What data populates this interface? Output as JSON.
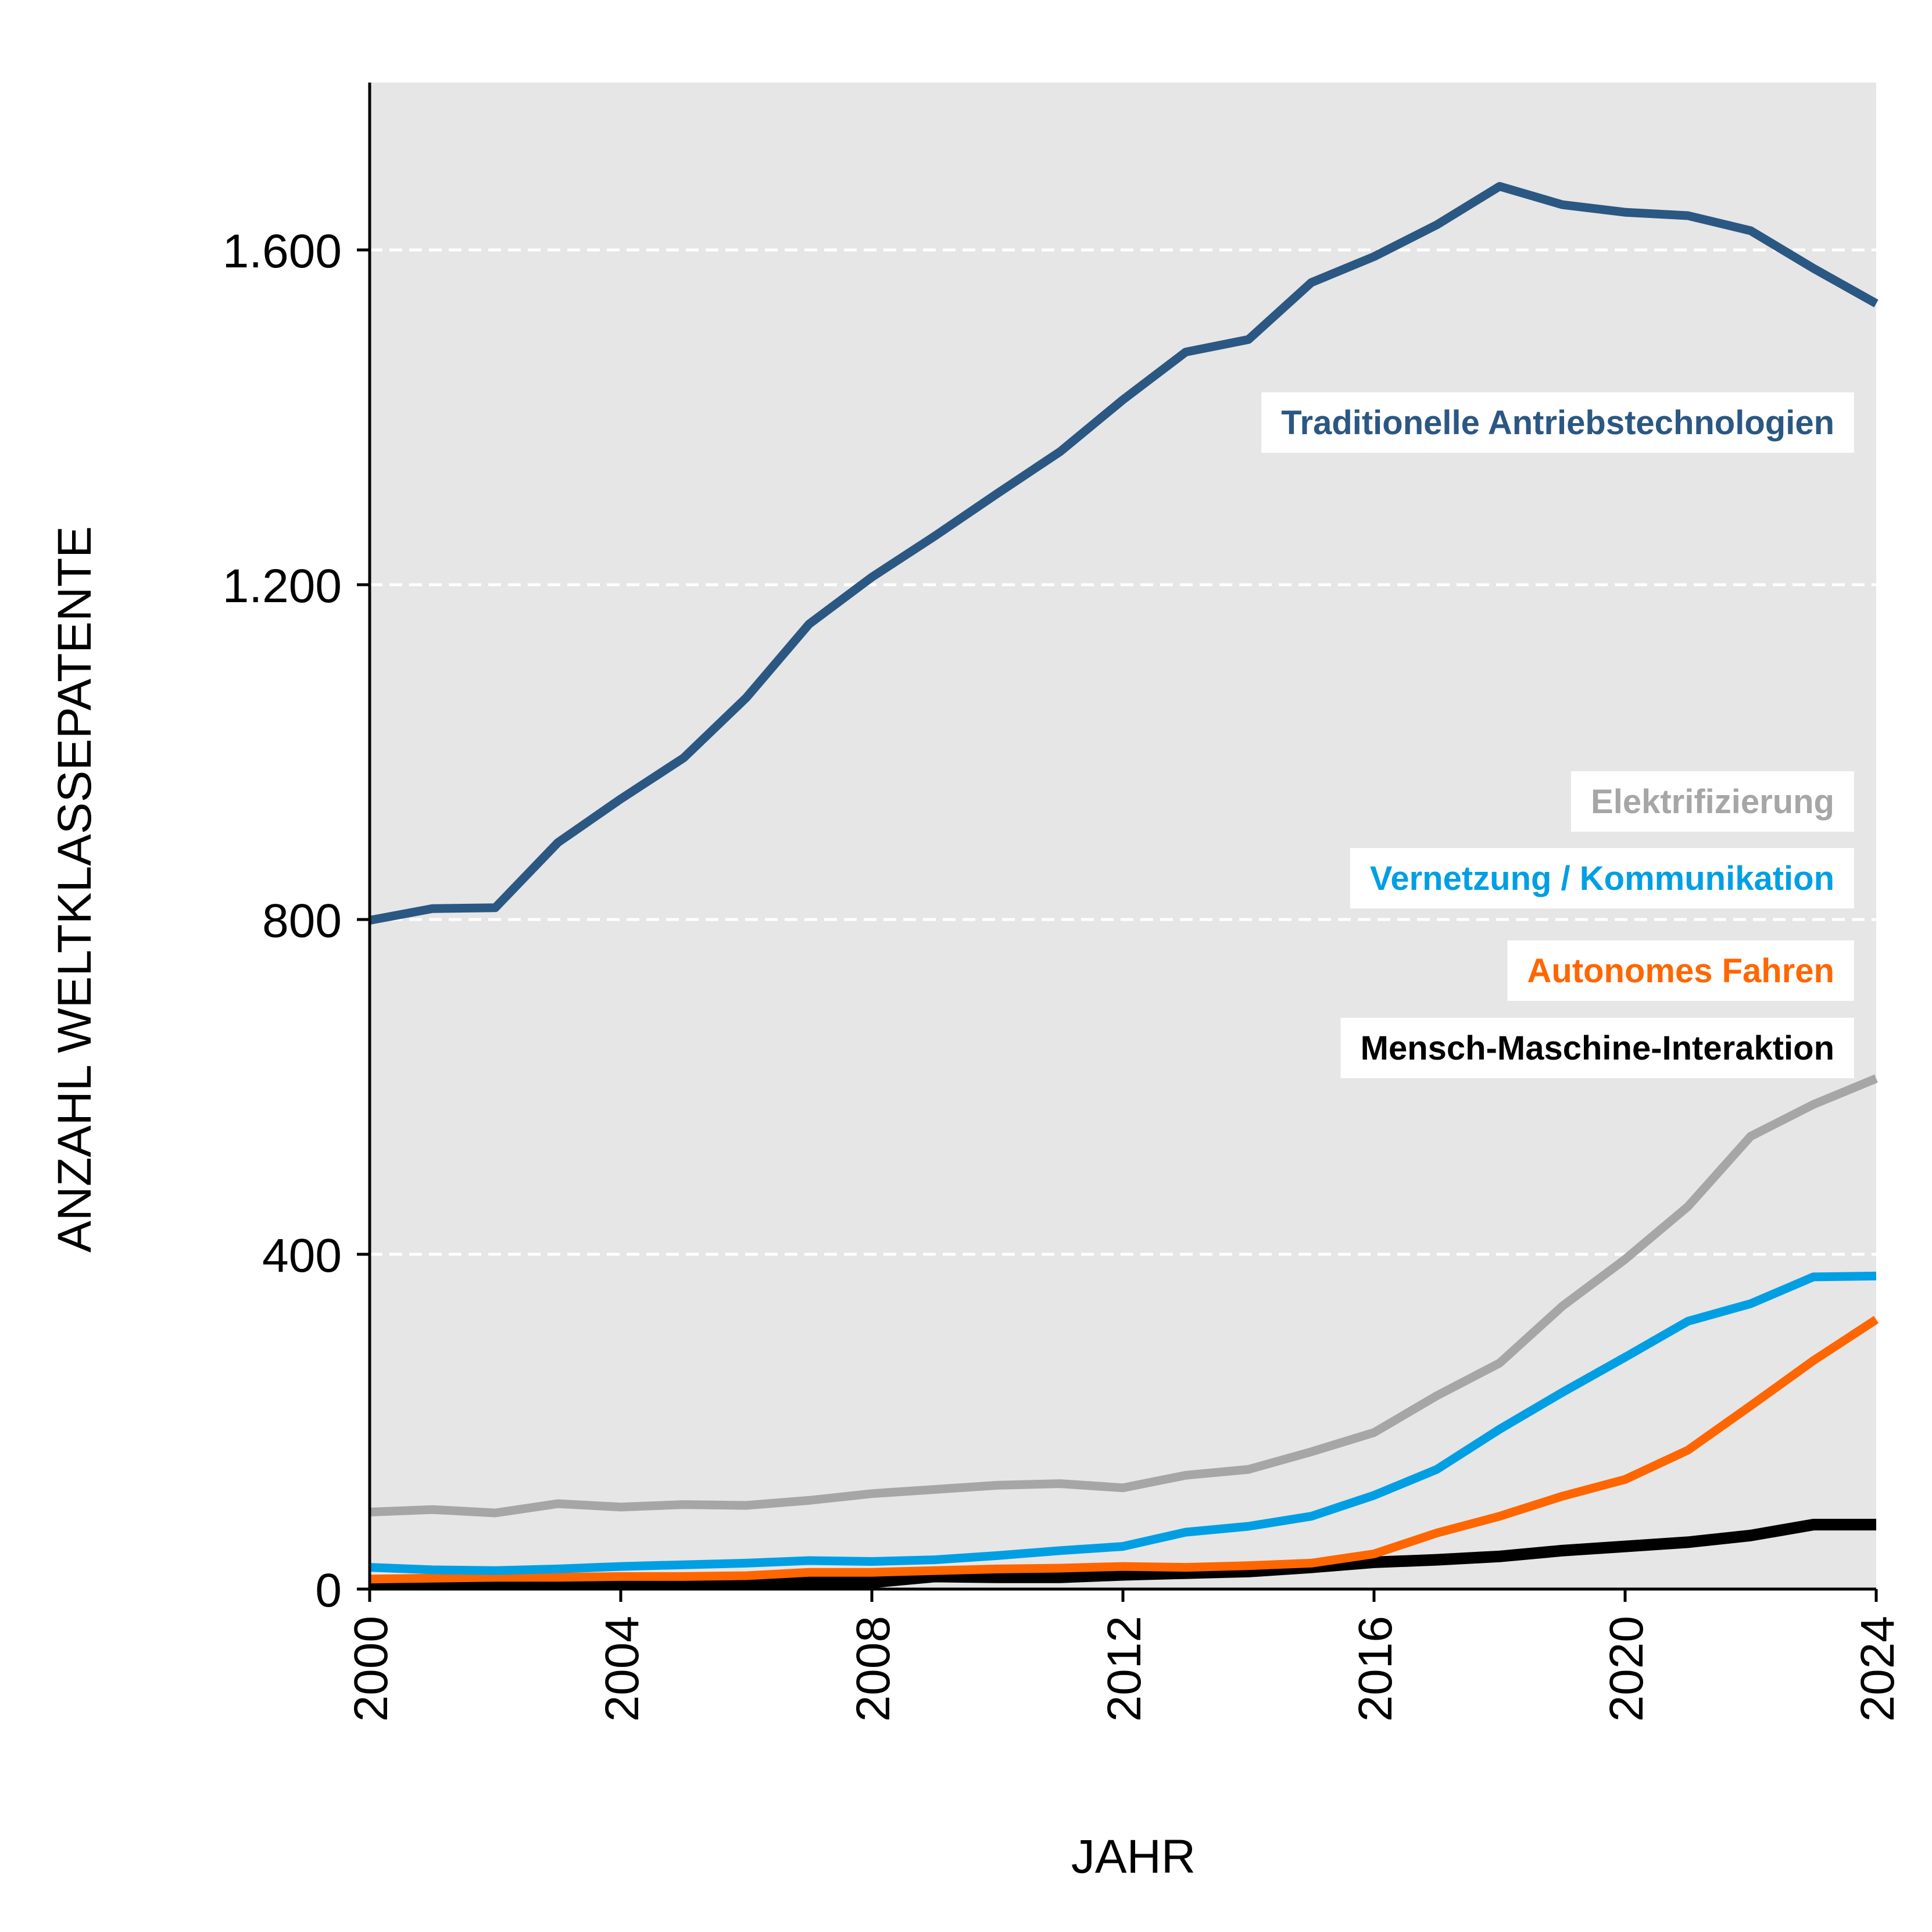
{
  "chart_data": {
    "type": "line",
    "title": "",
    "xlabel": "JAHR",
    "ylabel": "ANZAHL WELTKLASSEPATENTE",
    "xlim": [
      2000,
      2024
    ],
    "ylim": [
      0,
      1800
    ],
    "x_ticks": [
      2000,
      2004,
      2008,
      2012,
      2016,
      2020,
      2024
    ],
    "x_tick_labels": [
      "2000",
      "2004",
      "2008",
      "2012",
      "2016",
      "2020",
      "2024"
    ],
    "y_ticks": [
      0,
      400,
      800,
      1200,
      1600
    ],
    "y_tick_labels": [
      "0",
      "400",
      "800",
      "1.200",
      "1.600"
    ],
    "grid": "horizontal-dashed",
    "background_color": "#e6e6e6",
    "legend": "inline-right",
    "x": [
      2000,
      2001,
      2002,
      2003,
      2004,
      2005,
      2006,
      2007,
      2008,
      2009,
      2010,
      2011,
      2012,
      2013,
      2014,
      2015,
      2016,
      2017,
      2018,
      2019,
      2020,
      2021,
      2022,
      2023,
      2024
    ],
    "series": [
      {
        "name": "Traditionelle Antriebstechnologien",
        "color": "#2b5783",
        "values": [
          799,
          813,
          814,
          892,
          944,
          993,
          1065,
          1153,
          1209,
          1258,
          1309,
          1359,
          1421,
          1478,
          1493,
          1561,
          1592,
          1630,
          1676,
          1654,
          1645,
          1641,
          1623,
          1578,
          1536
        ]
      },
      {
        "name": "Elektrifizierung",
        "color": "#a6a6a6",
        "values": [
          92,
          95,
          91,
          102,
          98,
          101,
          100,
          106,
          114,
          119,
          124,
          126,
          121,
          136,
          143,
          164,
          187,
          231,
          270,
          338,
          394,
          457,
          541,
          579,
          610
        ]
      },
      {
        "name": "Vernetzung / Kommunikation",
        "color": "#009fe3",
        "values": [
          26,
          23,
          22,
          24,
          27,
          29,
          31,
          34,
          33,
          35,
          40,
          46,
          51,
          68,
          75,
          87,
          112,
          143,
          191,
          235,
          277,
          320,
          341,
          373,
          374
        ]
      },
      {
        "name": "Autonomes Fahren",
        "color": "#ff6600",
        "values": [
          12,
          13,
          14,
          14,
          15,
          15,
          16,
          20,
          20,
          22,
          24,
          25,
          27,
          26,
          28,
          31,
          42,
          67,
          87,
          111,
          131,
          166,
          219,
          273,
          322
        ]
      },
      {
        "name": "Mensch-Maschine-Interaktion",
        "color": "#000000",
        "values": [
          6,
          6,
          7,
          8,
          8,
          8,
          8,
          8,
          8,
          15,
          14,
          14,
          17,
          19,
          21,
          26,
          32,
          35,
          39,
          46,
          51,
          56,
          64,
          77,
          77
        ]
      }
    ]
  }
}
